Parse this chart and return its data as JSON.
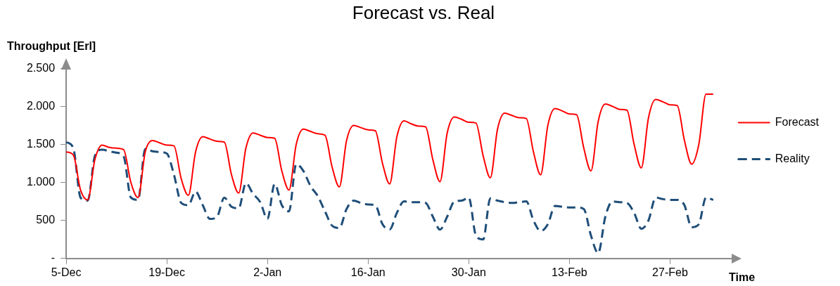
{
  "chart_data": {
    "type": "line",
    "title": "Forecast vs. Real",
    "xlabel": "Time",
    "ylabel": "Throughput [Erl]",
    "categories": [
      "5-Dec",
      null,
      null,
      null,
      null,
      null,
      null,
      null,
      null,
      null,
      null,
      null,
      null,
      null,
      "19-Dec",
      null,
      null,
      null,
      null,
      null,
      null,
      null,
      null,
      null,
      null,
      null,
      null,
      null,
      "2-Jan",
      null,
      null,
      null,
      null,
      null,
      null,
      null,
      null,
      null,
      null,
      null,
      null,
      null,
      "16-Jan",
      null,
      null,
      null,
      null,
      null,
      null,
      null,
      null,
      null,
      null,
      null,
      null,
      null,
      "30-Jan",
      null,
      null,
      null,
      null,
      null,
      null,
      null,
      null,
      null,
      null,
      null,
      null,
      null,
      "13-Feb",
      null,
      null,
      null,
      null,
      null,
      null,
      null,
      null,
      null,
      null,
      null,
      null,
      null,
      "27-Feb",
      null,
      null,
      null,
      null,
      null,
      null
    ],
    "series": [
      {
        "name": "Forecast",
        "color": "#ff0000",
        "line_style": "solid",
        "values": [
          1400,
          1360,
          900,
          770,
          1300,
          1490,
          1460,
          1450,
          1430,
          1000,
          800,
          1400,
          1550,
          1520,
          1490,
          1480,
          1050,
          830,
          1400,
          1600,
          1570,
          1540,
          1530,
          1100,
          860,
          1450,
          1650,
          1620,
          1590,
          1580,
          1150,
          900,
          1500,
          1700,
          1670,
          1640,
          1620,
          1200,
          940,
          1550,
          1750,
          1720,
          1690,
          1680,
          1250,
          980,
          1600,
          1810,
          1770,
          1740,
          1730,
          1300,
          1010,
          1650,
          1860,
          1830,
          1790,
          1780,
          1350,
          1060,
          1700,
          1910,
          1880,
          1850,
          1840,
          1400,
          1100,
          1750,
          1970,
          1940,
          1900,
          1890,
          1450,
          1150,
          1800,
          2030,
          2000,
          1960,
          1950,
          1500,
          1190,
          1850,
          2090,
          2060,
          2020,
          2010,
          1550,
          1240,
          1500,
          2160,
          2160
        ]
      },
      {
        "name": "Reality",
        "color": "#1f4e79",
        "line_style": "dashed",
        "values": [
          1530,
          1450,
          800,
          760,
          1350,
          1430,
          1410,
          1390,
          1340,
          800,
          770,
          1440,
          1410,
          1400,
          1380,
          1100,
          730,
          700,
          880,
          700,
          520,
          550,
          800,
          680,
          660,
          990,
          850,
          740,
          520,
          980,
          700,
          620,
          1240,
          1150,
          950,
          820,
          620,
          430,
          400,
          650,
          760,
          730,
          710,
          700,
          450,
          380,
          600,
          750,
          740,
          740,
          730,
          550,
          380,
          550,
          750,
          760,
          800,
          300,
          250,
          790,
          760,
          740,
          730,
          740,
          750,
          500,
          360,
          450,
          690,
          680,
          670,
          670,
          650,
          300,
          70,
          550,
          750,
          740,
          730,
          600,
          390,
          500,
          800,
          780,
          770,
          770,
          700,
          410,
          450,
          800,
          770
        ]
      }
    ],
    "ylim": [
      0,
      2500
    ],
    "yticks": [
      {
        "value": 0,
        "label": "-"
      },
      500,
      {
        "value": 1000,
        "label": "1.000"
      },
      {
        "value": 1500,
        "label": "1.500"
      },
      {
        "value": 2000,
        "label": "2.000"
      },
      {
        "value": 2500,
        "label": "2.500"
      }
    ],
    "legend": "right",
    "marker": "none",
    "grid": false
  }
}
